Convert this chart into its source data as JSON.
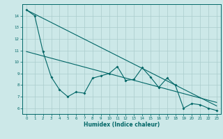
{
  "xlabel": "Humidex (Indice chaleur)",
  "ylabel": "",
  "bg_color": "#cce8e8",
  "grid_color": "#aacccc",
  "line_color": "#006666",
  "xlim": [
    -0.5,
    23.5
  ],
  "ylim": [
    5.5,
    15.0
  ],
  "xticks": [
    0,
    1,
    2,
    3,
    4,
    5,
    6,
    7,
    8,
    9,
    10,
    11,
    12,
    13,
    14,
    15,
    16,
    17,
    18,
    19,
    20,
    21,
    22,
    23
  ],
  "yticks": [
    6,
    7,
    8,
    9,
    10,
    11,
    12,
    13,
    14
  ],
  "data_line": {
    "x": [
      0,
      1,
      2,
      3,
      4,
      5,
      6,
      7,
      8,
      9,
      10,
      11,
      12,
      13,
      14,
      15,
      16,
      17,
      18,
      19,
      20,
      21,
      22,
      23
    ],
    "y": [
      14.5,
      14.0,
      10.9,
      8.7,
      7.6,
      7.0,
      7.4,
      7.3,
      8.6,
      8.8,
      9.0,
      9.6,
      8.4,
      8.5,
      9.5,
      8.7,
      7.8,
      8.6,
      8.0,
      6.0,
      6.4,
      6.3,
      6.0,
      5.8
    ]
  },
  "reg_line1": {
    "x": [
      0,
      23
    ],
    "y": [
      14.5,
      6.2
    ]
  },
  "reg_line2": {
    "x": [
      0,
      23
    ],
    "y": [
      10.9,
      6.5
    ]
  }
}
